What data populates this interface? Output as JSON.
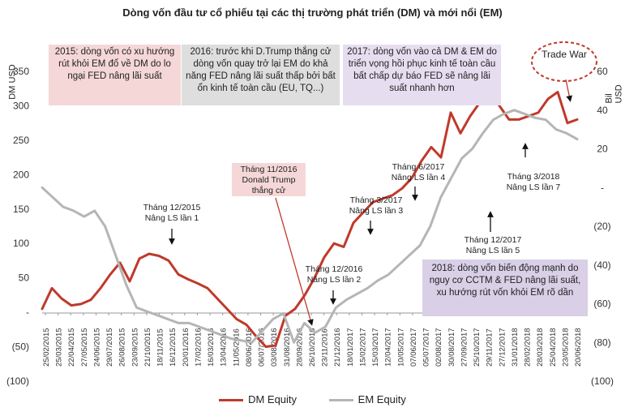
{
  "chart_data": {
    "type": "line",
    "title": "Dòng vốn đầu tư cổ phiếu tại các thị trường phát triển (DM) và mới nổi (EM)",
    "ylabel_left": "DM USD",
    "ylabel_right": "Bil USD",
    "ylim_left": [
      -100,
      350
    ],
    "ylim_right": [
      -100,
      60
    ],
    "yticks_left": [
      "(100)",
      "(50)",
      "-",
      "50",
      "100",
      "150",
      "200",
      "250",
      "300",
      "350"
    ],
    "yticks_right": [
      "(100)",
      "(80)",
      "(60)",
      "(40)",
      "(20)",
      "-",
      "20",
      "40",
      "60"
    ],
    "x_tick_labels": [
      "25/02/2015",
      "25/03/2015",
      "22/04/2015",
      "27/05/2015",
      "24/06/2015",
      "29/07/2015",
      "26/08/2015",
      "23/09/2015",
      "21/10/2015",
      "18/11/2015",
      "16/12/2015",
      "20/01/2016",
      "17/02/2016",
      "16/03/2016",
      "13/04/2016",
      "11/05/2016",
      "08/06/2016",
      "06/07/2016",
      "03/08/2016",
      "31/08/2016",
      "28/09/2016",
      "26/10/2016",
      "23/11/2016",
      "21/12/2016",
      "18/01/2017",
      "15/02/2017",
      "15/03/2017",
      "12/04/2017",
      "10/05/2017",
      "07/06/2017",
      "05/07/2017",
      "02/08/2017",
      "30/08/2017",
      "27/09/2017",
      "25/10/2017",
      "29/11/2017",
      "27/12/2017",
      "31/01/2018",
      "28/02/2018",
      "28/03/2018",
      "25/04/2018",
      "23/05/2018",
      "20/06/2018"
    ],
    "series": [
      {
        "name": "DM Equity",
        "axis": "left",
        "color": "#c0392b",
        "values": [
          5,
          35,
          20,
          10,
          12,
          18,
          35,
          55,
          72,
          45,
          78,
          85,
          82,
          75,
          55,
          48,
          42,
          35,
          20,
          5,
          -10,
          -18,
          -35,
          -50,
          -48,
          -5,
          5,
          25,
          50,
          80,
          100,
          95,
          130,
          145,
          160,
          165,
          170,
          180,
          195,
          220,
          240,
          225,
          290,
          260,
          285,
          305,
          320,
          300,
          280,
          280,
          285,
          290,
          310,
          320,
          275,
          280
        ]
      },
      {
        "name": "EM Equity",
        "axis": "right",
        "color": "#b5b5b5",
        "values": [
          0,
          -5,
          -10,
          -12,
          -15,
          -12,
          -20,
          -35,
          -50,
          -62,
          -64,
          -66,
          -68,
          -70,
          -70,
          -72,
          -74,
          -76,
          -78,
          -79,
          -80,
          -74,
          -68,
          -65,
          -80,
          -70,
          -75,
          -72,
          -62,
          -58,
          -55,
          -52,
          -48,
          -45,
          -40,
          -35,
          -30,
          -20,
          -5,
          5,
          15,
          20,
          28,
          35,
          38,
          40,
          38,
          36,
          35,
          30,
          28,
          25
        ]
      }
    ],
    "legend_position": "bottom",
    "grid": false
  },
  "annotations": {
    "box_2015": "2015: dòng vốn có xu hướng rút khỏi EM đổ về DM do lo ngại FED nâng lãi suất",
    "box_2016": "2016: trước khi D.Trump thắng cử dòng vốn quay trở lại EM do khả năng FED nâng lãi suất thấp bởi bất ổn kinh tế toàn cầu (EU, TQ...)",
    "box_2017": "2017: dòng vốn vào cả DM & EM do triển vọng hồi phục kinh tế toàn cầu bất chấp dự báo FED sẽ nâng lãi suất nhanh hơn",
    "box_2018": "2018: dòng vốn biến động mạnh do nguy cơ CCTM & FED nâng lãi suất, xu hướng rút vốn khỏi EM rõ dần",
    "trump": "Tháng 11/2016 Donald Trump thắng cử",
    "trade_war": "Trade War",
    "hike1": "Tháng 12/2015 Nâng LS lần 1",
    "hike2": "Tháng 12/2016 Nâng LS lần 2",
    "hike3": "Tháng 3/2017 Nâng LS lần 3",
    "hike4": "Tháng 6/2017 Nâng LS lần 4",
    "hike5": "Tháng 12/2017 Nâng LS lần 5",
    "hike7": "Tháng 3/2018 Nâng LS lần 7"
  },
  "legend": {
    "dm": "DM Equity",
    "em": "EM Equity"
  }
}
